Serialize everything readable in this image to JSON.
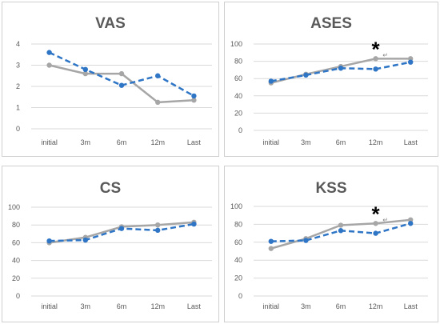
{
  "colors": {
    "series_a": "#2e75c6",
    "series_b": "#a6a6a6",
    "grid": "#d9d9d9"
  },
  "chart_data": [
    {
      "type": "line",
      "title": "VAS",
      "categories": [
        "initial",
        "3m",
        "6m",
        "12m",
        "Last"
      ],
      "ylim": [
        0,
        4
      ],
      "yticks": [
        "0",
        "1",
        "2",
        "3",
        "4"
      ],
      "grid": true,
      "series": [
        {
          "style": "dashed",
          "color": "#2e75c6",
          "values": [
            3.6,
            2.8,
            2.05,
            2.5,
            1.55
          ]
        },
        {
          "style": "solid",
          "color": "#a6a6a6",
          "values": [
            3.0,
            2.6,
            2.6,
            1.25,
            1.35
          ]
        }
      ],
      "annotations": []
    },
    {
      "type": "line",
      "title": "ASES",
      "categories": [
        "initial",
        "3m",
        "6m",
        "12m",
        "Last"
      ],
      "ylim": [
        0,
        100
      ],
      "yticks": [
        "0",
        "20",
        "40",
        "60",
        "80",
        "100"
      ],
      "grid": true,
      "series": [
        {
          "style": "dashed",
          "color": "#2e75c6",
          "values": [
            57,
            64,
            72,
            71,
            79
          ]
        },
        {
          "style": "solid",
          "color": "#a6a6a6",
          "values": [
            55,
            65,
            74,
            83,
            83
          ]
        }
      ],
      "annotations": [
        {
          "text": "*",
          "mark": "↵",
          "category": "12m"
        }
      ]
    },
    {
      "type": "line",
      "title": "CS",
      "categories": [
        "initial",
        "3m",
        "6m",
        "12m",
        "Last"
      ],
      "ylim": [
        0,
        100
      ],
      "yticks": [
        "0",
        "20",
        "40",
        "60",
        "80",
        "100"
      ],
      "grid": true,
      "series": [
        {
          "style": "dashed",
          "color": "#2e75c6",
          "values": [
            62,
            63,
            76,
            74,
            81
          ]
        },
        {
          "style": "solid",
          "color": "#a6a6a6",
          "values": [
            60,
            66,
            78,
            80,
            83
          ]
        }
      ],
      "annotations": []
    },
    {
      "type": "line",
      "title": "KSS",
      "categories": [
        "initial",
        "3m",
        "6m",
        "12m",
        "Last"
      ],
      "ylim": [
        0,
        100
      ],
      "yticks": [
        "0",
        "20",
        "40",
        "60",
        "80",
        "100"
      ],
      "grid": true,
      "series": [
        {
          "style": "dashed",
          "color": "#2e75c6",
          "values": [
            61,
            62,
            73,
            70,
            81
          ]
        },
        {
          "style": "solid",
          "color": "#a6a6a6",
          "values": [
            53,
            64,
            79,
            81,
            85
          ]
        }
      ],
      "annotations": [
        {
          "text": "*",
          "mark": "↵",
          "category": "12m"
        }
      ]
    }
  ]
}
